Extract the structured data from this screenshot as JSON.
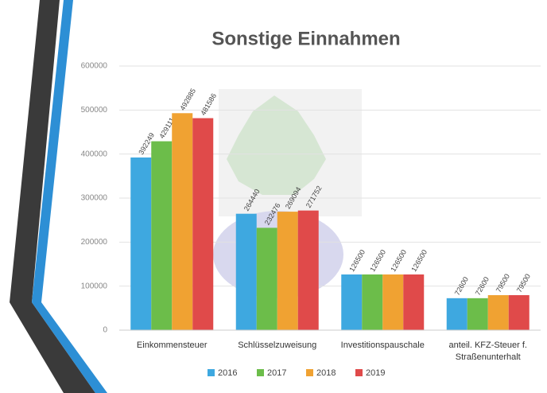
{
  "chart_data": {
    "type": "bar",
    "title": "Sonstige Einnahmen",
    "categories": [
      "Einkommensteuer",
      "Schlüsselzuweisung",
      "Investitionspauschale",
      "anteil. KFZ-Steuer f. Straßenunterhalt"
    ],
    "series": [
      {
        "name": "2016",
        "color": "#3ea8e0",
        "values": [
          392249,
          264440,
          126500,
          72600
        ]
      },
      {
        "name": "2017",
        "color": "#6cbd4a",
        "values": [
          429111,
          232476,
          126500,
          72600
        ]
      },
      {
        "name": "2018",
        "color": "#f0a232",
        "values": [
          492885,
          269094,
          126500,
          79500
        ]
      },
      {
        "name": "2019",
        "color": "#e04a4a",
        "values": [
          481586,
          271752,
          126500,
          79500
        ]
      }
    ],
    "ylim": [
      0,
      600000
    ],
    "yticks": [
      0,
      100000,
      200000,
      300000,
      400000,
      500000,
      600000
    ],
    "grid": true,
    "legend": "bottom"
  }
}
